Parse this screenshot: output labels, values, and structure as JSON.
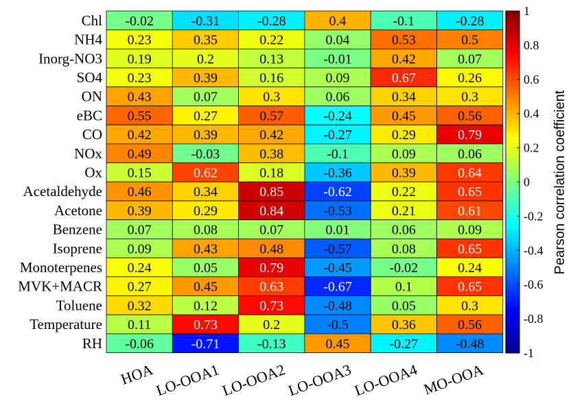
{
  "chart_data": {
    "type": "heatmap",
    "title": "",
    "rows": [
      "Chl",
      "NH4",
      "Inorg-NO3",
      "SO4",
      "ON",
      "eBC",
      "CO",
      "NOx",
      "Ox",
      "Acetaldehyde",
      "Acetone",
      "Benzene",
      "Isoprene",
      "Monoterpenes",
      "MVK+MACR",
      "Toluene",
      "Temperature",
      "RH"
    ],
    "columns": [
      "HOA",
      "LO-OOA1",
      "LO-OOA2",
      "LO-OOA3",
      "LO-OOA4",
      "MO-OOA"
    ],
    "values": [
      [
        -0.02,
        -0.31,
        -0.28,
        0.4,
        -0.1,
        -0.28
      ],
      [
        0.23,
        0.35,
        0.22,
        0.04,
        0.53,
        0.5
      ],
      [
        0.19,
        0.2,
        0.13,
        -0.01,
        0.42,
        0.07
      ],
      [
        0.23,
        0.39,
        0.16,
        0.09,
        0.67,
        0.26
      ],
      [
        0.43,
        0.07,
        0.3,
        0.06,
        0.34,
        0.3
      ],
      [
        0.55,
        0.27,
        0.57,
        -0.24,
        0.45,
        0.56
      ],
      [
        0.42,
        0.39,
        0.42,
        -0.27,
        0.29,
        0.79
      ],
      [
        0.49,
        -0.03,
        0.38,
        -0.1,
        0.09,
        0.06
      ],
      [
        0.15,
        0.62,
        0.18,
        -0.36,
        0.39,
        0.64
      ],
      [
        0.46,
        0.34,
        0.85,
        -0.62,
        0.22,
        0.65
      ],
      [
        0.39,
        0.29,
        0.84,
        -0.53,
        0.21,
        0.61
      ],
      [
        0.07,
        0.08,
        0.07,
        0.01,
        0.06,
        0.09
      ],
      [
        0.09,
        0.43,
        0.48,
        -0.57,
        0.08,
        0.65
      ],
      [
        0.24,
        0.05,
        0.79,
        -0.45,
        -0.02,
        0.24
      ],
      [
        0.27,
        0.45,
        0.63,
        -0.67,
        0.1,
        0.65
      ],
      [
        0.32,
        0.12,
        0.73,
        -0.48,
        0.05,
        0.3
      ],
      [
        0.11,
        0.73,
        0.2,
        -0.5,
        0.36,
        0.56
      ],
      [
        -0.06,
        -0.71,
        -0.13,
        0.45,
        -0.27,
        -0.48
      ]
    ],
    "colorbar": {
      "label": "Pearson correlation coefficient",
      "range": [
        -1,
        1
      ],
      "ticks": [
        1,
        0.8,
        0.6,
        0.4,
        0.2,
        0,
        -0.2,
        -0.4,
        -0.6,
        -0.8,
        -1
      ],
      "colormap": "jet"
    }
  }
}
